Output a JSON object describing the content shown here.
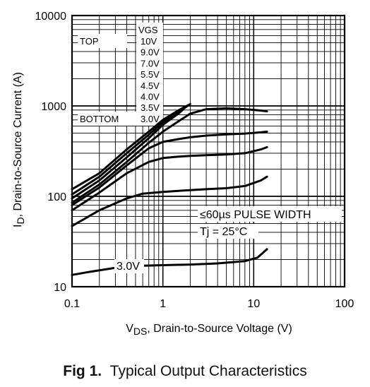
{
  "chart_data": {
    "type": "line",
    "x_scale": "log",
    "y_scale": "log",
    "xlim": [
      0.1,
      100
    ],
    "ylim": [
      10,
      10000
    ],
    "grid": true,
    "xlabel_prefix": "V",
    "xlabel_sub": "DS",
    "xlabel_rest": ", Drain-to-Source Voltage (V)",
    "ylabel_prefix": "I",
    "ylabel_sub": "D",
    "ylabel_rest": ", Drain-to-Source Current (A)",
    "x_ticks": [
      {
        "value": 0.1,
        "label": "0.1"
      },
      {
        "value": 1,
        "label": "1"
      },
      {
        "value": 10,
        "label": "10"
      },
      {
        "value": 100,
        "label": "100"
      }
    ],
    "y_ticks": [
      {
        "value": 10,
        "label": "10"
      },
      {
        "value": 100,
        "label": "100"
      },
      {
        "value": 1000,
        "label": "1000"
      },
      {
        "value": 10000,
        "label": "10000"
      }
    ],
    "legend": {
      "placement": "top-left",
      "top_label": "TOP",
      "bottom_label": "BOTTOM",
      "header": "VGS",
      "entries": [
        "10V",
        "9.0V",
        "7.0V",
        "5.5V",
        "4.5V",
        "4.0V",
        "3.5V",
        "3.0V"
      ]
    },
    "annotations": {
      "pulse": "≤60µs PULSE WIDTH",
      "temp": "Tj = 25°C",
      "curve_label": "3.0V"
    },
    "series": [
      {
        "x": [
          0.1,
          0.2,
          0.4,
          0.7,
          1.0,
          1.5,
          2.0
        ],
        "y": [
          120,
          180,
          330,
          520,
          700,
          900,
          1050
        ]
      },
      {
        "x": [
          0.1,
          0.2,
          0.4,
          0.7,
          1.0,
          1.5,
          1.9
        ],
        "y": [
          105,
          165,
          300,
          480,
          660,
          860,
          1010
        ]
      },
      {
        "x": [
          0.1,
          0.2,
          0.4,
          0.7,
          1.0,
          1.5,
          1.8
        ],
        "y": [
          95,
          150,
          270,
          440,
          620,
          830,
          980
        ]
      },
      {
        "x": [
          0.1,
          0.2,
          0.4,
          0.7,
          1.0,
          1.5,
          2.0,
          3.0,
          5.0,
          8.0,
          12.0,
          14.0
        ],
        "y": [
          85,
          135,
          240,
          390,
          520,
          680,
          820,
          920,
          940,
          920,
          890,
          870
        ]
      },
      {
        "x": [
          0.1,
          0.2,
          0.4,
          0.7,
          1.0,
          1.5,
          2.0,
          3.0,
          5.0,
          8.0,
          12.0,
          14.0
        ],
        "y": [
          80,
          125,
          220,
          340,
          400,
          430,
          450,
          470,
          485,
          495,
          510,
          520
        ]
      },
      {
        "x": [
          0.1,
          0.2,
          0.4,
          0.7,
          1.0,
          1.5,
          2.0,
          3.0,
          5.0,
          8.0,
          12.0,
          14.0
        ],
        "y": [
          70,
          110,
          180,
          240,
          265,
          275,
          280,
          285,
          290,
          300,
          330,
          350
        ]
      },
      {
        "x": [
          0.1,
          0.2,
          0.4,
          0.6,
          1.0,
          1.5,
          2.0,
          3.0,
          5.0,
          8.0,
          12.0,
          14.0
        ],
        "y": [
          47,
          70,
          95,
          107,
          112,
          115,
          117,
          120,
          123,
          130,
          150,
          165
        ]
      },
      {
        "x": [
          0.1,
          0.15,
          0.3,
          0.5,
          1.0,
          2.0,
          4.0,
          8.0,
          11.0,
          14.0
        ],
        "y": [
          13.5,
          14.5,
          16.2,
          17.0,
          17.3,
          17.6,
          18.1,
          19.2,
          21,
          26
        ]
      }
    ]
  },
  "caption": {
    "fig": "Fig 1.",
    "text": "Typical Output Characteristics"
  }
}
